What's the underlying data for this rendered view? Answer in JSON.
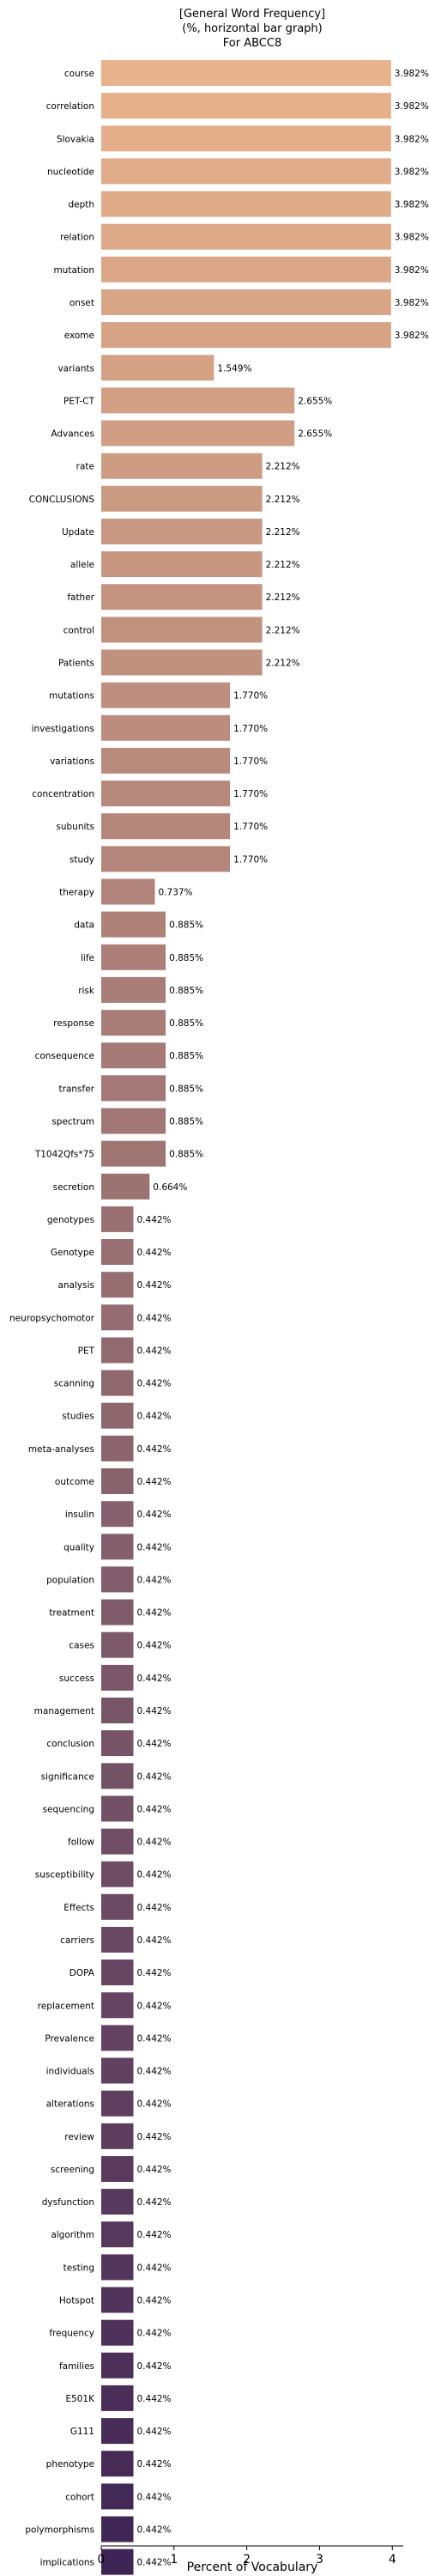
{
  "chart_data": {
    "type": "bar",
    "orientation": "horizontal",
    "title_lines": [
      "[General Word Frequency]",
      "(%, horizontal bar graph)",
      "For ABCC8"
    ],
    "xlabel": "Percent of Vocabulary",
    "ylabel": "",
    "xlim": [
      0,
      4.15
    ],
    "xticks": [
      0,
      1,
      2,
      3,
      4
    ],
    "grid": false,
    "legend": "none",
    "palette": {
      "start": "#e8b28c",
      "end": "#3f2555"
    },
    "categories": [
      "course",
      "correlation",
      "Slovakia",
      "nucleotide",
      "depth",
      "relation",
      "mutation",
      "onset",
      "exome",
      "variants",
      "PET-CT",
      "Advances",
      "rate",
      "CONCLUSIONS",
      "Update",
      "allele",
      "father",
      "control",
      "Patients",
      "mutations",
      "investigations",
      "variations",
      "concentration",
      "subunits",
      "study",
      "therapy",
      "data",
      "life",
      "risk",
      "response",
      "consequence",
      "transfer",
      "spectrum",
      "T1042Qfs*75",
      "secretion",
      "genotypes",
      "Genotype",
      "analysis",
      "neuropsychomotor",
      "PET",
      "scanning",
      "studies",
      "meta-analyses",
      "outcome",
      "insulin",
      "quality",
      "population",
      "treatment",
      "cases",
      "success",
      "management",
      "conclusion",
      "significance",
      "sequencing",
      "follow",
      "susceptibility",
      "Effects",
      "carriers",
      "DOPA",
      "replacement",
      "Prevalence",
      "individuals",
      "alterations",
      "review",
      "screening",
      "dysfunction",
      "algorithm",
      "testing",
      "Hotspot",
      "frequency",
      "families",
      "E501K",
      "G111",
      "phenotype",
      "cohort",
      "polymorphisms",
      "implications"
    ],
    "values": [
      3.982,
      3.982,
      3.982,
      3.982,
      3.982,
      3.982,
      3.982,
      3.982,
      3.982,
      1.549,
      2.655,
      2.655,
      2.212,
      2.212,
      2.212,
      2.212,
      2.212,
      2.212,
      2.212,
      1.77,
      1.77,
      1.77,
      1.77,
      1.77,
      1.77,
      0.737,
      0.885,
      0.885,
      0.885,
      0.885,
      0.885,
      0.885,
      0.885,
      0.885,
      0.664,
      0.442,
      0.442,
      0.442,
      0.442,
      0.442,
      0.442,
      0.442,
      0.442,
      0.442,
      0.442,
      0.442,
      0.442,
      0.442,
      0.442,
      0.442,
      0.442,
      0.442,
      0.442,
      0.442,
      0.442,
      0.442,
      0.442,
      0.442,
      0.442,
      0.442,
      0.442,
      0.442,
      0.442,
      0.442,
      0.442,
      0.442,
      0.442,
      0.442,
      0.442,
      0.442,
      0.442,
      0.442,
      0.442,
      0.442,
      0.442,
      0.442,
      0.442
    ],
    "value_labels": [
      "3.982%",
      "3.982%",
      "3.982%",
      "3.982%",
      "3.982%",
      "3.982%",
      "3.982%",
      "3.982%",
      "3.982%",
      "1.549%",
      "2.655%",
      "2.655%",
      "2.212%",
      "2.212%",
      "2.212%",
      "2.212%",
      "2.212%",
      "2.212%",
      "2.212%",
      "1.770%",
      "1.770%",
      "1.770%",
      "1.770%",
      "1.770%",
      "1.770%",
      "0.737%",
      "0.885%",
      "0.885%",
      "0.885%",
      "0.885%",
      "0.885%",
      "0.885%",
      "0.885%",
      "0.885%",
      "0.664%",
      "0.442%",
      "0.442%",
      "0.442%",
      "0.442%",
      "0.442%",
      "0.442%",
      "0.442%",
      "0.442%",
      "0.442%",
      "0.442%",
      "0.442%",
      "0.442%",
      "0.442%",
      "0.442%",
      "0.442%",
      "0.442%",
      "0.442%",
      "0.442%",
      "0.442%",
      "0.442%",
      "0.442%",
      "0.442%",
      "0.442%",
      "0.442%",
      "0.442%",
      "0.442%",
      "0.442%",
      "0.442%",
      "0.442%",
      "0.442%",
      "0.442%",
      "0.442%",
      "0.442%",
      "0.442%",
      "0.442%",
      "0.442%",
      "0.442%",
      "0.442%",
      "0.442%",
      "0.442%",
      "0.442%",
      "0.442%"
    ]
  }
}
